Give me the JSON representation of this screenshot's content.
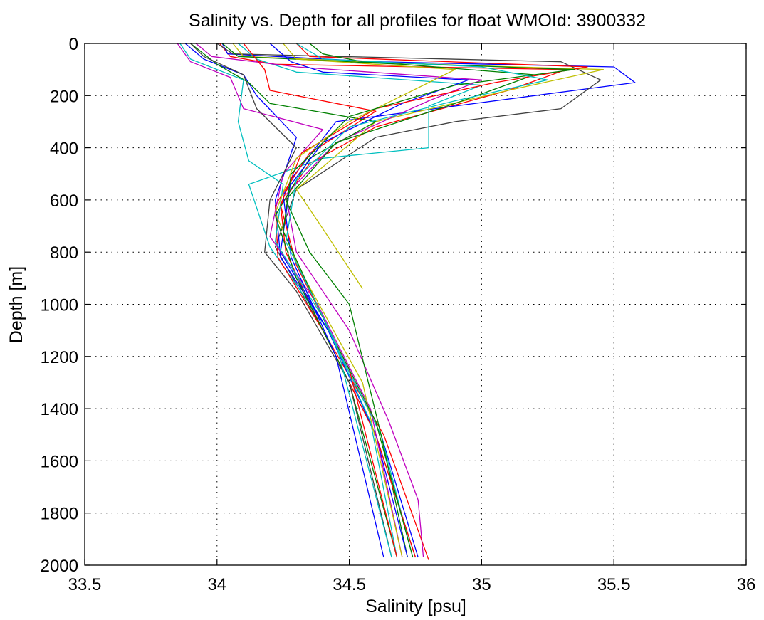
{
  "chart_data": {
    "type": "line",
    "title": "Salinity vs. Depth for all profiles for float WMOId: 3900332",
    "xlabel": "Salinity [psu]",
    "ylabel": "Depth [m]",
    "xlim": [
      33.5,
      36
    ],
    "ylim": [
      0,
      2000
    ],
    "y_inverted": true,
    "grid": true,
    "grid_style": "dotted",
    "x_ticks": [
      33.5,
      34,
      34.5,
      35,
      35.5,
      36
    ],
    "x_tick_labels": [
      "33.5",
      "34",
      "34.5",
      "35",
      "35.5",
      "36"
    ],
    "y_ticks": [
      0,
      200,
      400,
      600,
      800,
      1000,
      1200,
      1400,
      1600,
      1800,
      2000
    ],
    "y_tick_labels": [
      "0",
      "200",
      "400",
      "600",
      "800",
      "1000",
      "1200",
      "1400",
      "1600",
      "1800",
      "2000"
    ],
    "line_colors": [
      "#0000ff",
      "#008000",
      "#ff0000",
      "#00bfbf",
      "#bf00bf",
      "#bfbf00",
      "#404040"
    ],
    "series": [
      {
        "color": "#ff0000",
        "x": [
          34.01,
          34.05,
          34.22,
          35.32,
          35.1,
          34.6,
          34.35,
          34.24,
          34.26,
          34.4,
          34.63,
          34.8
        ],
        "y": [
          0,
          50,
          80,
          100,
          180,
          320,
          460,
          620,
          800,
          1100,
          1500,
          1980
        ]
      },
      {
        "color": "#0000ff",
        "x": [
          34.02,
          34.04,
          34.6,
          35.5,
          35.58,
          35.2,
          34.45,
          34.28,
          34.24,
          34.42,
          34.62,
          34.76
        ],
        "y": [
          0,
          40,
          70,
          90,
          150,
          200,
          300,
          520,
          800,
          1100,
          1500,
          1970
        ]
      },
      {
        "color": "#404040",
        "x": [
          34.0,
          34.06,
          35.3,
          35.45,
          35.3,
          34.9,
          34.6,
          34.3,
          34.22,
          34.4,
          34.6,
          34.75
        ],
        "y": [
          0,
          40,
          70,
          140,
          250,
          300,
          360,
          560,
          780,
          1100,
          1500,
          1970
        ]
      },
      {
        "color": "#bfbf00",
        "x": [
          34.06,
          34.1,
          34.8,
          35.46,
          35.1,
          34.6,
          34.3,
          34.38,
          34.55
        ],
        "y": [
          0,
          50,
          80,
          100,
          180,
          300,
          560,
          680,
          940
        ]
      },
      {
        "color": "#00bfbf",
        "x": [
          34.08,
          34.15,
          34.3,
          35.0,
          34.8,
          34.8,
          34.4,
          34.12,
          34.2,
          34.42,
          34.62,
          34.74
        ],
        "y": [
          0,
          60,
          110,
          160,
          240,
          400,
          440,
          540,
          780,
          1100,
          1500,
          1970
        ]
      },
      {
        "color": "#bf00bf",
        "x": [
          33.92,
          33.98,
          34.3,
          35.0,
          34.8,
          34.45,
          34.26,
          34.3,
          34.5,
          34.65,
          34.76,
          34.78
        ],
        "y": [
          0,
          50,
          90,
          140,
          220,
          380,
          580,
          800,
          1100,
          1450,
          1750,
          1970
        ]
      },
      {
        "color": "#008000",
        "x": [
          34.02,
          34.08,
          34.7,
          35.2,
          34.9,
          34.45,
          34.26,
          34.35,
          34.5,
          34.62,
          34.72
        ],
        "y": [
          0,
          50,
          80,
          120,
          230,
          380,
          600,
          800,
          1000,
          1500,
          1970
        ]
      },
      {
        "color": "#ff0000",
        "x": [
          34.1,
          34.18,
          34.2,
          34.6,
          34.35,
          34.22,
          34.23,
          34.4,
          34.6,
          34.75
        ],
        "y": [
          0,
          100,
          180,
          260,
          420,
          620,
          820,
          1100,
          1500,
          1970
        ]
      },
      {
        "color": "#0000ff",
        "x": [
          33.88,
          33.95,
          34.1,
          34.15,
          34.3,
          34.22,
          34.24,
          34.42,
          34.6,
          34.72
        ],
        "y": [
          0,
          60,
          120,
          200,
          360,
          600,
          820,
          1100,
          1500,
          1970
        ]
      },
      {
        "color": "#008000",
        "x": [
          33.9,
          34.0,
          34.12,
          34.2,
          34.6,
          34.35,
          34.22,
          34.3,
          34.5,
          34.68
        ],
        "y": [
          0,
          80,
          150,
          230,
          300,
          440,
          660,
          900,
          1300,
          1970
        ]
      },
      {
        "color": "#bf00bf",
        "x": [
          33.85,
          33.9,
          34.05,
          34.1,
          34.4,
          34.25,
          34.2,
          34.38,
          34.58,
          34.7
        ],
        "y": [
          0,
          70,
          130,
          250,
          330,
          500,
          740,
          1000,
          1400,
          1970
        ]
      },
      {
        "color": "#00bfbf",
        "x": [
          33.86,
          33.9,
          34.1,
          34.08,
          34.12,
          34.25,
          34.22,
          34.4,
          34.58,
          34.68
        ],
        "y": [
          0,
          60,
          140,
          300,
          450,
          540,
          760,
          1050,
          1450,
          1970
        ]
      },
      {
        "color": "#404040",
        "x": [
          33.9,
          33.95,
          34.1,
          34.15,
          34.3,
          34.2,
          34.18,
          34.3,
          34.5,
          34.66
        ],
        "y": [
          0,
          50,
          120,
          250,
          400,
          600,
          800,
          950,
          1300,
          1970
        ]
      },
      {
        "color": "#0000ff",
        "x": [
          34.2,
          34.28,
          34.4,
          34.95,
          34.7,
          34.4,
          34.25,
          34.28,
          34.45,
          34.63
        ],
        "y": [
          0,
          70,
          110,
          140,
          230,
          380,
          580,
          820,
          1200,
          1970
        ]
      },
      {
        "color": "#ff0000",
        "x": [
          34.3,
          34.35,
          35.4,
          35.05,
          34.6,
          34.32,
          34.24,
          34.3,
          34.5,
          34.68
        ],
        "y": [
          0,
          50,
          90,
          150,
          250,
          420,
          620,
          850,
          1250,
          1970
        ]
      },
      {
        "color": "#bfbf00",
        "x": [
          34.25,
          34.3,
          34.9,
          34.7,
          34.5,
          34.3,
          34.22,
          34.32,
          34.55,
          34.7
        ],
        "y": [
          0,
          60,
          100,
          200,
          300,
          440,
          650,
          880,
          1300,
          1970
        ]
      },
      {
        "color": "#008000",
        "x": [
          34.35,
          34.4,
          34.55,
          35.35,
          34.9,
          34.5,
          34.28,
          34.25,
          34.4,
          34.6,
          34.74
        ],
        "y": [
          0,
          40,
          70,
          100,
          160,
          280,
          500,
          720,
          1050,
          1450,
          1970
        ]
      },
      {
        "color": "#00bfbf",
        "x": [
          34.3,
          34.4,
          35.0,
          35.25,
          34.9,
          34.5,
          34.3,
          34.26,
          34.45,
          34.66
        ],
        "y": [
          0,
          60,
          90,
          140,
          220,
          320,
          520,
          760,
          1150,
          1970
        ]
      }
    ]
  }
}
